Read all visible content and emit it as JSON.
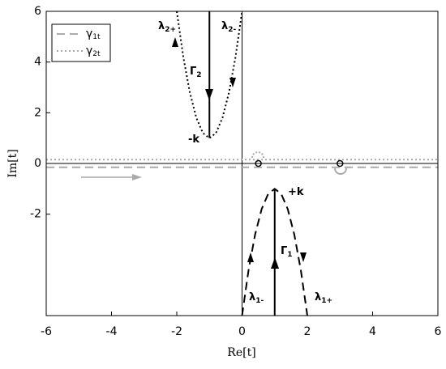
{
  "chart_data": {
    "type": "line",
    "xlabel": "Re[t]",
    "ylabel": "Im[t]",
    "xlim": [
      -6,
      6
    ],
    "ylim": [
      -6,
      6
    ],
    "xticks": [
      -6,
      -4,
      -2,
      0,
      2,
      4,
      6
    ],
    "yticks": [
      -2,
      0,
      2,
      4,
      6
    ],
    "legend": "upper left",
    "series": [
      {
        "name": "γ",
        "name_sub": "1t",
        "color": "#aaaaaa",
        "dash": "dashed",
        "x": [
          -6,
          6
        ],
        "values": [
          -0.15,
          -0.15
        ]
      },
      {
        "name": "γ",
        "name_sub": "2t",
        "color": "#aaaaaa",
        "dash": "dotted",
        "x": [
          -6,
          6
        ],
        "values": [
          0.15,
          0.15
        ]
      },
      {
        "color": "#000000",
        "dash": "dotted",
        "x": [
          -2,
          -1.8,
          -1.6,
          -1.4,
          -1.2,
          -1,
          -0.8,
          -0.6,
          -0.4,
          -0.2,
          0
        ],
        "values": [
          6,
          4.2,
          2.8,
          1.8,
          1.2,
          1,
          1.2,
          1.8,
          2.8,
          4.2,
          6
        ]
      },
      {
        "color": "#000000",
        "dash": "dashed",
        "x": [
          0,
          0.2,
          0.4,
          0.6,
          0.8,
          1,
          1.2,
          1.4,
          1.6,
          1.8,
          2
        ],
        "values": [
          -6,
          -4.2,
          -2.8,
          -1.8,
          -1.2,
          -1,
          -1.2,
          -1.8,
          -2.8,
          -4.2,
          -6
        ]
      },
      {
        "color": "#000000",
        "dash": "solid",
        "x": [
          -1,
          -1
        ],
        "values": [
          6,
          1
        ]
      },
      {
        "color": "#000000",
        "dash": "solid",
        "x": [
          1,
          1
        ],
        "values": [
          -1,
          -6
        ]
      }
    ],
    "points": {
      "color": "#000000",
      "x": [
        0.5,
        3
      ],
      "values": [
        0,
        0
      ]
    },
    "annotations": [
      {
        "text": "λ",
        "sub": "2+"
      },
      {
        "text": "λ",
        "sub": "2-"
      },
      {
        "text": "Γ",
        "sub": "2"
      },
      {
        "text": "-k"
      },
      {
        "text": "+k"
      },
      {
        "text": "Γ",
        "sub": "1"
      },
      {
        "text": "λ",
        "sub": "1-"
      },
      {
        "text": "λ",
        "sub": "1+"
      }
    ]
  }
}
